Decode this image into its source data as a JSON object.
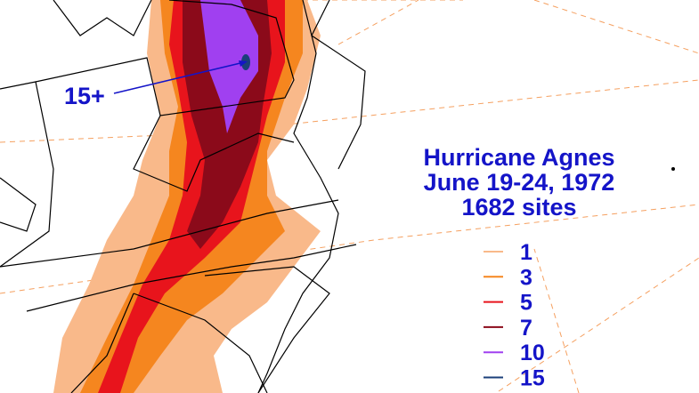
{
  "title_lines": [
    "Hurricane Agnes",
    "June 19-24, 1972",
    "1682 sites"
  ],
  "annotation": "15+",
  "legend": [
    {
      "label": "1",
      "color": "#f9b98a"
    },
    {
      "label": "3",
      "color": "#f5861f"
    },
    {
      "label": "5",
      "color": "#e8141c"
    },
    {
      "label": "7",
      "color": "#8b0a1a"
    },
    {
      "label": "10",
      "color": "#a040f0"
    },
    {
      "label": "15",
      "color": "#1b3f7a"
    }
  ]
}
